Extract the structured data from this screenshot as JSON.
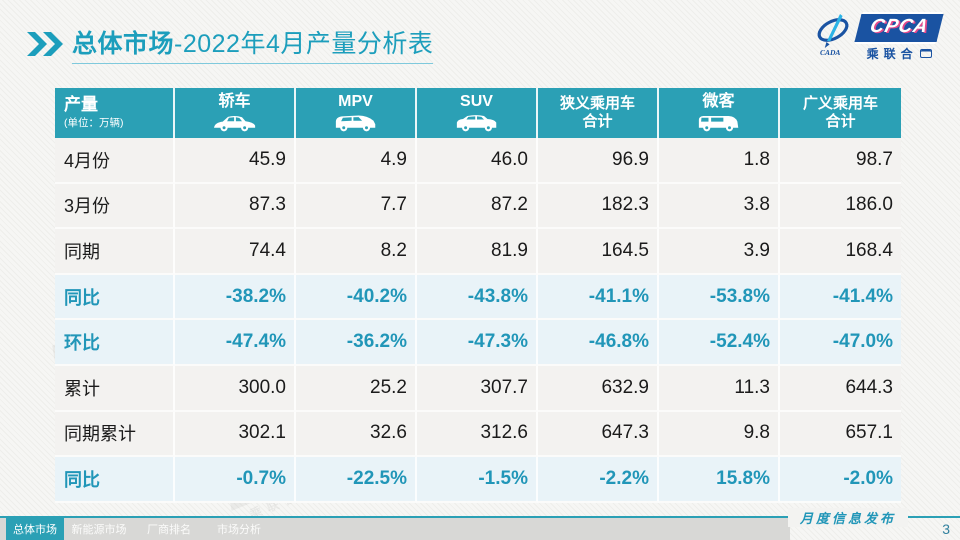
{
  "colors": {
    "accent_title": "#1C9EBC",
    "header_teal": "#2BA0B5",
    "percent_text": "#2196B8",
    "row_gray": "#F3F2F0",
    "row_blue": "#E9F3F8",
    "logo_blue": "#1A53A2",
    "logo_pink": "#E54B8C",
    "tabbar_gray": "#D8D8D6"
  },
  "header": {
    "chevrons_icon": "double-chevron-right-icon",
    "title_main": "总体市场",
    "title_rest": "-2022年4月产量分析表"
  },
  "logo": {
    "cpca": "CPCA",
    "name": "乘联合",
    "cada": "CADA"
  },
  "table": {
    "corner_title": "产量",
    "corner_unit": "(单位：万辆)",
    "columns": [
      {
        "key": "sedan",
        "label": "轿车",
        "icon": "sedan-icon"
      },
      {
        "key": "mpv",
        "label": "MPV",
        "icon": "mpv-icon"
      },
      {
        "key": "suv",
        "label": "SUV",
        "icon": "suv-icon"
      },
      {
        "key": "narrow-total",
        "label": "狭义乘用车",
        "label2": "合计"
      },
      {
        "key": "minibus",
        "label": "微客",
        "icon": "minibus-icon"
      },
      {
        "key": "broad-total",
        "label": "广义乘用车",
        "label2": "合计"
      }
    ],
    "rows": [
      {
        "label": "4月份",
        "style": "value",
        "cells": [
          "45.9",
          "4.9",
          "46.0",
          "96.9",
          "1.8",
          "98.7"
        ]
      },
      {
        "label": "3月份",
        "style": "value",
        "cells": [
          "87.3",
          "7.7",
          "87.2",
          "182.3",
          "3.8",
          "186.0"
        ]
      },
      {
        "label": "同期",
        "style": "value",
        "cells": [
          "74.4",
          "8.2",
          "81.9",
          "164.5",
          "3.9",
          "168.4"
        ]
      },
      {
        "label": "同比",
        "style": "percent",
        "cells": [
          "-38.2%",
          "-40.2%",
          "-43.8%",
          "-41.1%",
          "-53.8%",
          "-41.4%"
        ]
      },
      {
        "label": "环比",
        "style": "percent",
        "cells": [
          "-47.4%",
          "-36.2%",
          "-47.3%",
          "-46.8%",
          "-52.4%",
          "-47.0%"
        ]
      },
      {
        "label": "累计",
        "style": "value",
        "cells": [
          "300.0",
          "25.2",
          "307.7",
          "632.9",
          "11.3",
          "644.3"
        ]
      },
      {
        "label": "同期累计",
        "style": "value",
        "cells": [
          "302.1",
          "32.6",
          "312.6",
          "647.3",
          "9.8",
          "657.1"
        ]
      },
      {
        "label": "同比",
        "style": "percent",
        "cells": [
          "-0.7%",
          "-22.5%",
          "-1.5%",
          "-2.2%",
          "15.8%",
          "-2.0%"
        ]
      }
    ]
  },
  "footer": {
    "tabs": [
      {
        "label": "总体市场",
        "active": true
      },
      {
        "label": "新能源市场",
        "active": false
      },
      {
        "label": "厂商排名",
        "active": false
      },
      {
        "label": "市场分析",
        "active": false
      }
    ],
    "publication": "月度信息发布",
    "page": "3"
  },
  "watermark_text": "CPCA"
}
